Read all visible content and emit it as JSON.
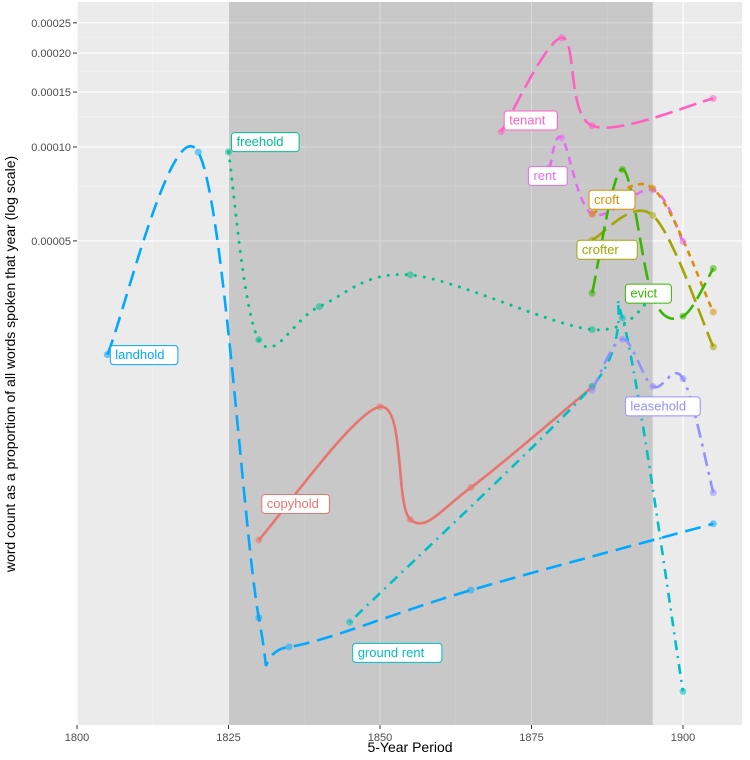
{
  "chart_data": {
    "type": "line",
    "title": "",
    "xlabel": "5-Year Period",
    "ylabel": "word count as a proportion of all words spoken that year (log scale)",
    "xlim": [
      1797,
      1912
    ],
    "ylim_log": [
      1.4e-06,
      0.00029
    ],
    "x_ticks": [
      1800,
      1825,
      1850,
      1875,
      1900
    ],
    "x_tick_labels": [
      "1800",
      "1825",
      "1850",
      "1875",
      "1900"
    ],
    "y_ticks": [
      5e-05,
      0.0001,
      0.00015,
      0.0002,
      0.00025
    ],
    "y_tick_labels": [
      "0.00005",
      "0.00010",
      "0.00015",
      "0.00020",
      "0.00025"
    ],
    "grid": true,
    "shaded_period": [
      1825,
      1895
    ],
    "legend": "none (direct labels)",
    "series": [
      {
        "name": "landhold",
        "color": "#00a9ff",
        "dash": "long",
        "label_at": [
          1805,
          2.16e-05
        ],
        "x": [
          1805,
          1820,
          1830,
          1835,
          1865,
          1905
        ],
        "values": [
          2.16e-05,
          9.63e-05,
          3.1e-06,
          2.5e-06,
          3.8e-06,
          6.2e-06
        ]
      },
      {
        "name": "freehold",
        "color": "#00c08b",
        "dash": "dotted",
        "label_at": [
          1825,
          0.000104
        ],
        "x": [
          1825,
          1830,
          1840,
          1855,
          1885,
          1895
        ],
        "values": [
          9.64e-05,
          2.41e-05,
          3.08e-05,
          3.89e-05,
          2.6e-05,
          3.31e-05
        ]
      },
      {
        "name": "copyhold",
        "color": "#e7756f",
        "dash": "solid",
        "label_at": [
          1830,
          7.2e-06
        ],
        "x": [
          1830,
          1850,
          1855,
          1865,
          1885
        ],
        "values": [
          5.5e-06,
          1.47e-05,
          6.4e-06,
          8.1e-06,
          1.7e-05
        ]
      },
      {
        "name": "ground rent",
        "color": "#00bfc4",
        "dash": "dotdash",
        "label_at": [
          1845,
          2.4e-06
        ],
        "x": [
          1845,
          1885,
          1890,
          1900
        ],
        "values": [
          3e-06,
          1.71e-05,
          2.83e-05,
          1.8e-06
        ]
      },
      {
        "name": "leasehold",
        "color": "#9590ff",
        "dash": "longdash-dot",
        "label_at": [
          1890,
          1.48e-05
        ],
        "x": [
          1885,
          1890,
          1895,
          1900,
          1905
        ],
        "values": [
          1.66e-05,
          2.42e-05,
          1.71e-05,
          1.81e-05,
          7.8e-06
        ]
      },
      {
        "name": "tenant",
        "color": "#ff61c3",
        "dash": "longdash",
        "label_at": [
          1870,
          0.000122
        ],
        "x": [
          1870,
          1880,
          1885,
          1905
        ],
        "values": [
          0.000112,
          0.000224,
          0.000117,
          0.000143
        ]
      },
      {
        "name": "rent",
        "color": "#e76bf3",
        "dash": "dashed",
        "label_at": [
          1874,
          8.1e-05
        ],
        "x": [
          1878,
          1880,
          1885,
          1895,
          1900
        ],
        "values": [
          8.6e-05,
          0.000107,
          6.1e-05,
          7.29e-05,
          4.98e-05
        ]
      },
      {
        "name": "croft",
        "color": "#d89000",
        "dash": "dashed-short",
        "label_at": [
          1884,
          6.8e-05
        ],
        "x": [
          1885,
          1895,
          1905
        ],
        "values": [
          6.1e-05,
          7.38e-05,
          2.96e-05
        ]
      },
      {
        "name": "crofter",
        "color": "#a3a500",
        "dash": "longdash",
        "label_at": [
          1882,
          4.7e-05
        ],
        "x": [
          1885,
          1895,
          1905
        ],
        "values": [
          5.03e-05,
          6.04e-05,
          2.29e-05
        ]
      },
      {
        "name": "evict",
        "color": "#39b600",
        "dash": "longdash",
        "label_at": [
          1890,
          3.4e-05
        ],
        "x": [
          1885,
          1890,
          1895,
          1900,
          1905
        ],
        "values": [
          3.4e-05,
          8.48e-05,
          3.31e-05,
          2.87e-05,
          4.08e-05
        ]
      }
    ]
  }
}
